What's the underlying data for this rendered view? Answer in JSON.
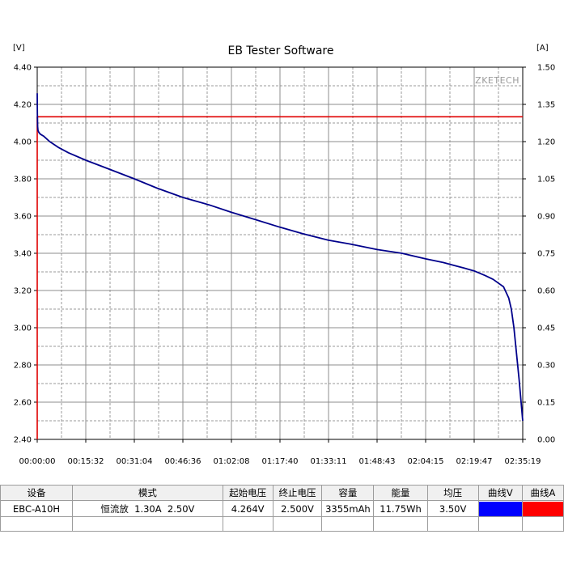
{
  "chart_data": {
    "type": "line",
    "title": "EB Tester Software",
    "watermark": "ZKETECH",
    "y_left_unit": "[V]",
    "y_right_unit": "[A]",
    "ylim_left": [
      2.4,
      4.4
    ],
    "ylim_right": [
      0,
      1.5
    ],
    "left_ticks": [
      "4.40",
      "4.20",
      "4.00",
      "3.80",
      "3.60",
      "3.40",
      "3.20",
      "3.00",
      "2.80",
      "2.60",
      "2.40"
    ],
    "right_ticks": [
      "1.50",
      "1.35",
      "1.20",
      "1.05",
      "0.90",
      "0.75",
      "0.60",
      "0.45",
      "0.30",
      "0.15",
      "0.00"
    ],
    "x_ticks": [
      "00:00:00",
      "00:15:32",
      "00:31:04",
      "00:46:36",
      "01:02:08",
      "01:17:40",
      "01:33:11",
      "01:48:43",
      "02:04:15",
      "02:19:47",
      "02:35:19"
    ],
    "xlim_seconds": [
      0,
      9319
    ],
    "grid": true,
    "series": [
      {
        "name": "曲线V",
        "axis": "left",
        "color": "#00008b",
        "x": [
          0,
          3,
          8,
          15,
          30,
          60,
          120,
          240,
          400,
          600,
          932,
          1400,
          1864,
          2300,
          2796,
          3300,
          3728,
          4200,
          4660,
          5100,
          5592,
          6000,
          6524,
          7000,
          7456,
          7800,
          8000,
          8200,
          8388,
          8600,
          8750,
          8850,
          8950,
          9050,
          9100,
          9150,
          9200,
          9250,
          9300,
          9319
        ],
        "values": [
          4.26,
          4.15,
          4.08,
          4.06,
          4.05,
          4.04,
          4.03,
          4.0,
          3.97,
          3.94,
          3.9,
          3.85,
          3.8,
          3.75,
          3.7,
          3.66,
          3.62,
          3.58,
          3.54,
          3.505,
          3.47,
          3.45,
          3.42,
          3.4,
          3.37,
          3.35,
          3.335,
          3.32,
          3.305,
          3.28,
          3.26,
          3.24,
          3.22,
          3.16,
          3.1,
          3.0,
          2.86,
          2.72,
          2.56,
          2.5
        ]
      },
      {
        "name": "曲线A",
        "axis": "right",
        "color": "#e00000",
        "x": [
          0,
          0,
          10,
          9319
        ],
        "values": [
          0.0,
          1.3,
          1.3,
          1.3
        ]
      }
    ]
  },
  "table": {
    "headers": [
      "设备",
      "模式",
      "起始电压",
      "终止电压",
      "容量",
      "能量",
      "均压",
      "曲线V",
      "曲线A"
    ],
    "row": {
      "device": "EBC-A10H",
      "mode": "恒流放  1.30A  2.50V",
      "start_voltage": "4.264V",
      "end_voltage": "2.500V",
      "capacity": "3355mAh",
      "energy": "11.75Wh",
      "avg_voltage": "3.50V"
    },
    "curve_v_color": "#0000ff",
    "curve_a_color": "#ff0000"
  }
}
